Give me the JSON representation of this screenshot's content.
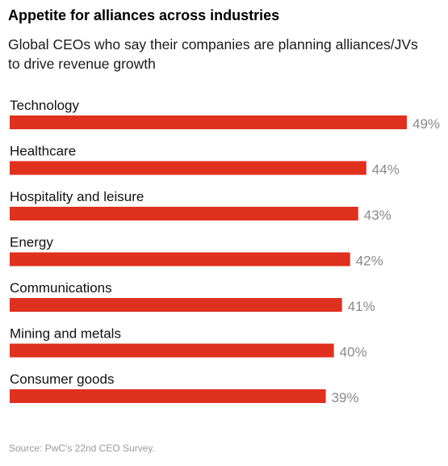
{
  "title": "Appetite for alliances across industries",
  "subtitle": "Global CEOs who say their companies are planning alliances/JVs to drive revenue growth",
  "source": "Source: PwC's 22nd CEO Survey.",
  "colors": {
    "bar": "#e0301e",
    "value_label": "#8a8a8a"
  },
  "chart_data": {
    "type": "bar",
    "orientation": "horizontal",
    "categories": [
      "Technology",
      "Healthcare",
      "Hospitality and leisure",
      "Energy",
      "Communications",
      "Mining and metals",
      "Consumer goods"
    ],
    "values": [
      49,
      44,
      43,
      42,
      41,
      40,
      39
    ],
    "value_labels": [
      "49%",
      "44%",
      "43%",
      "42%",
      "41%",
      "40%",
      "39%"
    ],
    "unit": "%",
    "xlim": [
      0,
      49
    ],
    "grid": false,
    "legend": "none"
  }
}
